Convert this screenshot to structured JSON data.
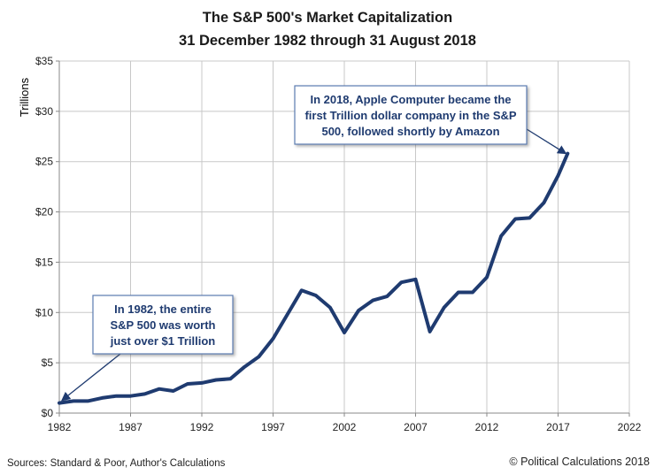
{
  "chart_data": {
    "type": "line",
    "title": "The S&P 500's Market Capitalization",
    "subtitle": "31 December 1982 through 31 August 2018",
    "xlabel": "",
    "ylabel": "Trillions",
    "xlim": [
      1982,
      2022
    ],
    "ylim": [
      0,
      35
    ],
    "x_ticks": [
      "1982",
      "1987",
      "1992",
      "1997",
      "2002",
      "2007",
      "2012",
      "2017",
      "2022"
    ],
    "y_ticks": [
      "$0",
      "$5",
      "$10",
      "$15",
      "$20",
      "$25",
      "$30",
      "$35"
    ],
    "grid": true,
    "series_color": "#1f3b70",
    "x": [
      1982,
      1983,
      1984,
      1985,
      1986,
      1987,
      1988,
      1989,
      1990,
      1991,
      1992,
      1993,
      1994,
      1995,
      1996,
      1997,
      1998,
      1999,
      2000,
      2001,
      2002,
      2003,
      2004,
      2005,
      2006,
      2007,
      2008,
      2009,
      2010,
      2011,
      2012,
      2013,
      2014,
      2015,
      2016,
      2017,
      2017.67
    ],
    "values": [
      1.0,
      1.2,
      1.2,
      1.5,
      1.7,
      1.7,
      1.9,
      2.4,
      2.2,
      2.9,
      3.0,
      3.3,
      3.4,
      4.6,
      5.6,
      7.4,
      9.8,
      12.2,
      11.7,
      10.5,
      8.0,
      10.2,
      11.2,
      11.6,
      13.0,
      13.3,
      8.1,
      10.5,
      12.0,
      12.0,
      13.5,
      17.6,
      19.3,
      19.4,
      20.9,
      23.6,
      25.8
    ],
    "annotations": [
      {
        "lines": [
          "In 1982, the entire",
          "S&P 500 was worth",
          "just over $1 Trillion"
        ],
        "points_to": [
          1982,
          1.0
        ]
      },
      {
        "lines": [
          "In 2018, Apple Computer became the",
          "first Trillion dollar company in the S&P",
          "500, followed shortly by Amazon"
        ],
        "points_to": [
          2017.67,
          25.8
        ]
      }
    ]
  },
  "footer": {
    "sources": "Sources: Standard & Poor, Author's Calculations",
    "copyright": "© Political Calculations 2018"
  }
}
